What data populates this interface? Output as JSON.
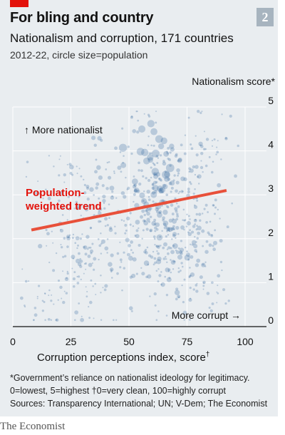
{
  "header": {
    "title": "For bling and country",
    "subtitle": "Nationalism and corruption, 171 countries",
    "subtitle2": "2012-22, circle size=population",
    "chart_number": "2"
  },
  "colors": {
    "accent": "#e3120b",
    "panel": "#e9edf0",
    "dots": "#3b6aa0",
    "trend": "#e8503a"
  },
  "chart_data": {
    "type": "scatter",
    "ylabel": "Nationalism score*",
    "xlabel": "Corruption perceptions index, score",
    "xlabel_sup": "†",
    "x_ticks": [
      "0",
      "25",
      "50",
      "75",
      "100"
    ],
    "y_ticks": [
      "0",
      "1",
      "2",
      "3",
      "4",
      "5"
    ],
    "xlim": [
      0,
      100
    ],
    "ylim": [
      0,
      5
    ],
    "grid": true,
    "annotations": {
      "up": "↑ More nationalist",
      "right": "More corrupt →",
      "trend_label": [
        "Population-",
        "weighted trend"
      ]
    },
    "trend": {
      "x": [
        8,
        92
      ],
      "y": [
        2.2,
        3.1
      ]
    },
    "clusters": [
      {
        "cx": 63,
        "cy": 2.9,
        "sx": 6,
        "sy": 0.6,
        "n": 120,
        "r": [
          1.5,
          4.5
        ]
      },
      {
        "cx": 65,
        "cy": 1.7,
        "sx": 8,
        "sy": 0.6,
        "n": 130,
        "r": [
          1.2,
          3.8
        ]
      },
      {
        "cx": 40,
        "cy": 2.6,
        "sx": 12,
        "sy": 0.8,
        "n": 150,
        "r": [
          1.2,
          3.5
        ]
      },
      {
        "cx": 78,
        "cy": 2.4,
        "sx": 7,
        "sy": 0.9,
        "n": 110,
        "r": [
          1.2,
          3.2
        ]
      },
      {
        "cx": 30,
        "cy": 1.3,
        "sx": 10,
        "sy": 0.6,
        "n": 90,
        "r": [
          1.0,
          3.0
        ]
      },
      {
        "cx": 62,
        "cy": 3.8,
        "sx": 8,
        "sy": 0.4,
        "n": 50,
        "r": [
          1.2,
          6.0
        ]
      },
      {
        "cx": 22,
        "cy": 2.9,
        "sx": 7,
        "sy": 0.7,
        "n": 45,
        "r": [
          1.0,
          3.5
        ]
      },
      {
        "cx": 85,
        "cy": 4.1,
        "sx": 6,
        "sy": 0.4,
        "n": 30,
        "r": [
          1.0,
          2.5
        ]
      },
      {
        "cx": 12,
        "cy": 0.6,
        "sx": 5,
        "sy": 0.4,
        "n": 25,
        "r": [
          1.0,
          2.5
        ]
      },
      {
        "cx": 83,
        "cy": 0.8,
        "sx": 6,
        "sy": 0.4,
        "n": 25,
        "r": [
          1.0,
          2.5
        ]
      },
      {
        "cx": 53,
        "cy": 4.8,
        "sx": 4,
        "sy": 0.15,
        "n": 10,
        "r": [
          1.0,
          2.0
        ]
      }
    ]
  },
  "footnote": {
    "line1": "*Government’s reliance on nationalist ideology for legitimacy.",
    "line2": "0=lowest, 5=highest   †0=very clean, 100=highly corrupt",
    "line3": "Sources: Transparency International; UN; V-Dem; The Economist"
  },
  "brand": "The Economist"
}
